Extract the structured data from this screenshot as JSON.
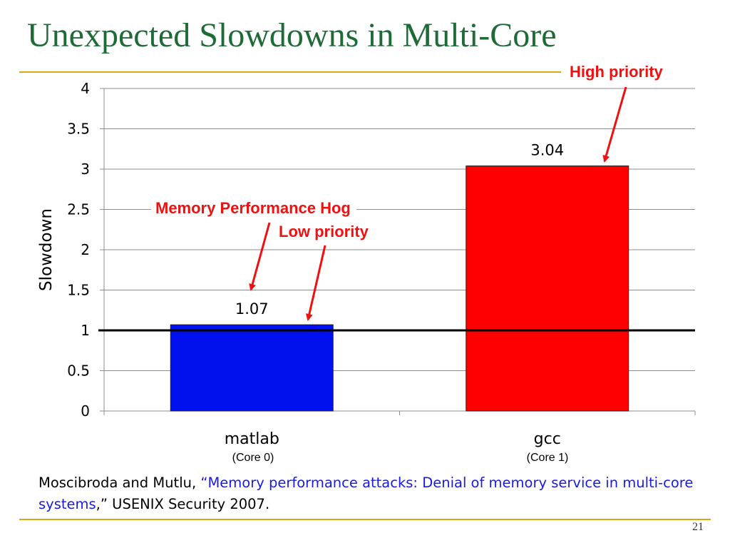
{
  "slide": {
    "title": "Unexpected Slowdowns in Multi-Core",
    "number": "21"
  },
  "callouts": {
    "high_priority": "High priority",
    "memory_hog": "Memory Performance Hog",
    "low_priority": "Low priority"
  },
  "core_labels": [
    "(Core 0)",
    "(Core 1)"
  ],
  "citation": {
    "authors": "Moscibroda and Mutlu, ",
    "open_quote": "“",
    "title": "Memory performance attacks: Denial of memory service in multi-core systems",
    "close_quote": ",”",
    "venue": " USENIX Security 2007."
  },
  "colors": {
    "title": "#1e6b38",
    "rule": "#d8a818",
    "callout": "#ee1111",
    "citation_link": "#1a1ae6"
  },
  "chart_data": {
    "type": "bar",
    "categories": [
      "matlab",
      "gcc"
    ],
    "values": [
      1.07,
      3.04
    ],
    "data_labels": [
      "1.07",
      "3.04"
    ],
    "bar_colors": [
      "#0011ee",
      "#ff0000"
    ],
    "ylabel": "Slowdown",
    "xlabel": "",
    "ylim": [
      0,
      4
    ],
    "yticks": [
      0,
      0.5,
      1,
      1.5,
      2,
      2.5,
      3,
      3.5,
      4
    ],
    "ytick_labels": [
      "0",
      "0.5",
      "1",
      "1.5",
      "2",
      "2.5",
      "3",
      "3.5",
      "4"
    ],
    "reference_line": 1,
    "grid": true,
    "legend": "none"
  }
}
